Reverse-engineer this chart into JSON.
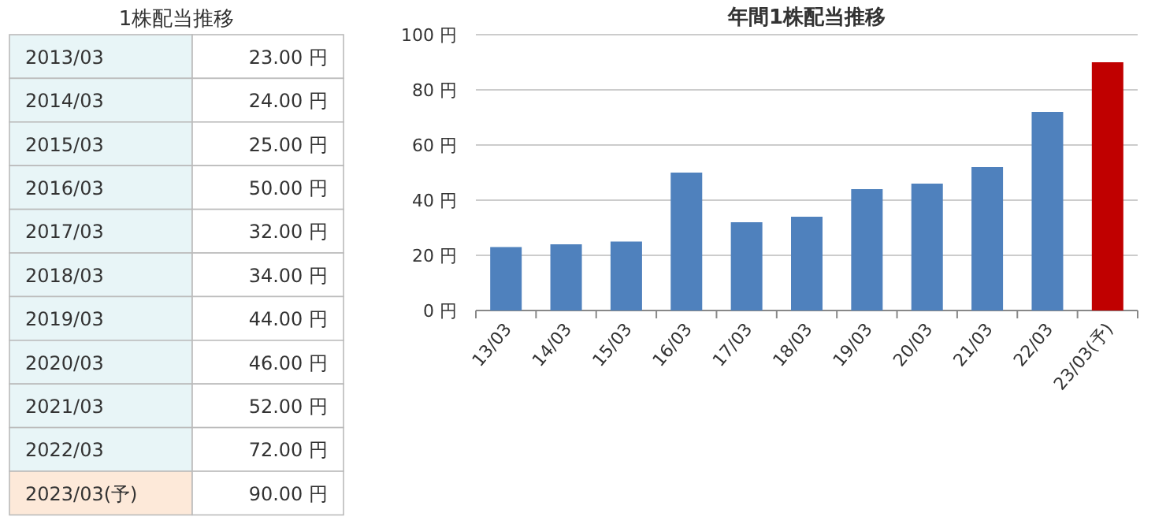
{
  "chart_data": [
    {
      "type": "other",
      "title": "1株配当推移",
      "categories": [
        "2013/03",
        "2014/03",
        "2015/03",
        "2016/03",
        "2017/03",
        "2018/03",
        "2019/03",
        "2020/03",
        "2021/03",
        "2022/03",
        "2023/03(予)"
      ],
      "value_labels": [
        "23.00 円",
        "24.00 円",
        "25.00 円",
        "50.00 円",
        "32.00 円",
        "34.00 円",
        "44.00 円",
        "46.00 円",
        "52.00 円",
        "72.00 円",
        "90.00 円"
      ],
      "colors": [
        "#e8f5f7",
        "#e8f5f7",
        "#e8f5f7",
        "#e8f5f7",
        "#e8f5f7",
        "#e8f5f7",
        "#e8f5f7",
        "#e8f5f7",
        "#e8f5f7",
        "#e8f5f7",
        "#fde9d9"
      ]
    },
    {
      "type": "bar",
      "title": "年間1株配当推移",
      "categories": [
        "13/03",
        "14/03",
        "15/03",
        "16/03",
        "17/03",
        "18/03",
        "19/03",
        "20/03",
        "21/03",
        "22/03",
        "23/03(予)"
      ],
      "values": [
        23,
        24,
        25,
        50,
        32,
        34,
        44,
        46,
        52,
        72,
        90
      ],
      "colors": [
        "#4f81bd",
        "#4f81bd",
        "#4f81bd",
        "#4f81bd",
        "#4f81bd",
        "#4f81bd",
        "#4f81bd",
        "#4f81bd",
        "#4f81bd",
        "#4f81bd",
        "#c00000"
      ],
      "ylim": [
        0,
        100
      ],
      "yticks": [
        {
          "value": 0,
          "label": "0 円"
        },
        {
          "value": 20,
          "label": "20 円"
        },
        {
          "value": 40,
          "label": "40 円"
        },
        {
          "value": 60,
          "label": "60 円"
        },
        {
          "value": 80,
          "label": "80 円"
        },
        {
          "value": 100,
          "label": "100 円"
        }
      ],
      "grid": "y"
    }
  ]
}
